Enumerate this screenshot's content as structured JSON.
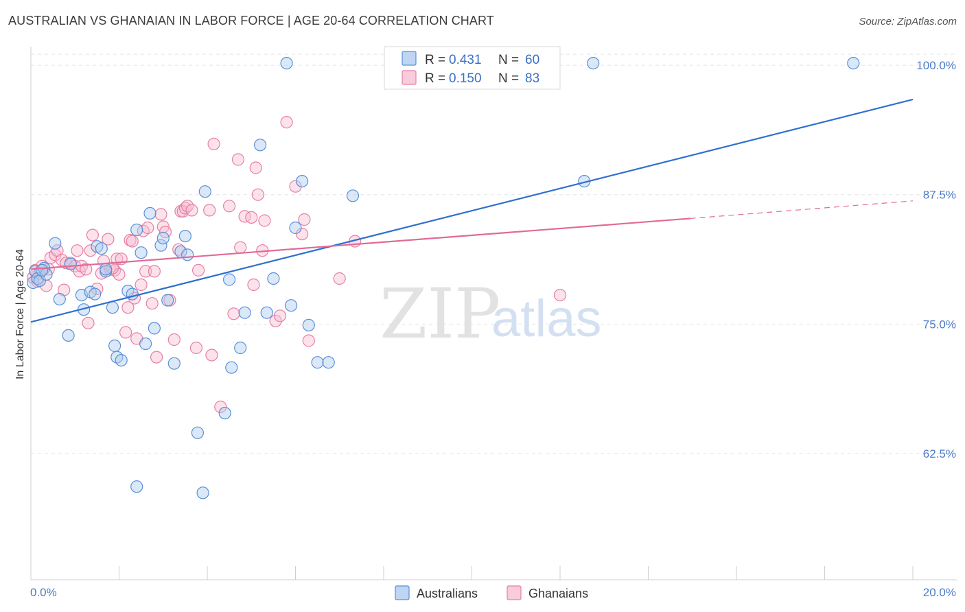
{
  "title": "AUSTRALIAN VS GHANAIAN IN LABOR FORCE | AGE 20-64 CORRELATION CHART",
  "source": "Source: ZipAtlas.com",
  "watermark": {
    "zip": "ZIP",
    "atlas": "atlas"
  },
  "legend": {
    "r_label": "R =",
    "n_label": "N =",
    "entries": [
      {
        "r": "0.431",
        "n": "60",
        "color": "#5b8fd6",
        "fill": "#aecbf0"
      },
      {
        "r": "0.150",
        "n": "83",
        "color": "#e77fa5",
        "fill": "#f7bfd2"
      }
    ]
  },
  "bottom_legend": [
    "Australians",
    "Ghanaians"
  ],
  "colors": {
    "blue": "#3f7fd6",
    "blue_line": "#2f6fcf",
    "pink": "#e8799f",
    "pink_line": "#e06a98",
    "tick": "#4a7ac8"
  },
  "chart_data": {
    "type": "scatter",
    "title": "AUSTRALIAN VS GHANAIAN IN LABOR FORCE | AGE 20-64 CORRELATION CHART",
    "xlabel": "",
    "ylabel": "In Labor Force | Age 20-64",
    "xlim": [
      0,
      20
    ],
    "ylim": [
      50.3,
      101.8
    ],
    "x_tick_labels": [
      "0.0%",
      "20.0%"
    ],
    "y_ticks": [
      62.5,
      75.0,
      87.5,
      100.0
    ],
    "y_tick_labels": [
      "62.5%",
      "75.0%",
      "87.5%",
      "100.0%"
    ],
    "grid": true,
    "legend_position": "top-center",
    "series": [
      {
        "name": "Australians",
        "color": "#3f7fd6",
        "r": 0.431,
        "n": 60,
        "trend": {
          "x": [
            0,
            20
          ],
          "y": [
            75.2,
            96.7
          ],
          "style": "solid"
        },
        "points": [
          [
            0.05,
            79.0
          ],
          [
            0.1,
            80.1
          ],
          [
            0.15,
            79.4
          ],
          [
            0.2,
            79.2
          ],
          [
            0.3,
            80.4
          ],
          [
            0.35,
            79.8
          ],
          [
            0.55,
            82.8
          ],
          [
            0.65,
            77.4
          ],
          [
            0.85,
            73.9
          ],
          [
            0.9,
            80.8
          ],
          [
            1.15,
            77.8
          ],
          [
            1.2,
            76.4
          ],
          [
            1.35,
            78.1
          ],
          [
            1.45,
            77.9
          ],
          [
            1.5,
            82.5
          ],
          [
            1.6,
            82.3
          ],
          [
            1.7,
            80.1
          ],
          [
            1.85,
            76.6
          ],
          [
            1.9,
            72.9
          ],
          [
            1.95,
            71.8
          ],
          [
            2.05,
            71.5
          ],
          [
            2.2,
            78.2
          ],
          [
            2.3,
            77.9
          ],
          [
            2.4,
            84.1
          ],
          [
            2.5,
            81.9
          ],
          [
            2.6,
            73.1
          ],
          [
            2.7,
            85.7
          ],
          [
            2.8,
            74.6
          ],
          [
            2.95,
            82.6
          ],
          [
            3.0,
            83.3
          ],
          [
            3.1,
            77.3
          ],
          [
            3.25,
            71.2
          ],
          [
            3.4,
            82.0
          ],
          [
            3.5,
            83.5
          ],
          [
            3.55,
            81.7
          ],
          [
            3.78,
            64.5
          ],
          [
            3.9,
            58.7
          ],
          [
            3.95,
            87.8
          ],
          [
            2.4,
            59.3
          ],
          [
            4.4,
            66.4
          ],
          [
            4.5,
            79.3
          ],
          [
            4.55,
            70.8
          ],
          [
            4.75,
            72.7
          ],
          [
            4.85,
            76.1
          ],
          [
            5.2,
            92.3
          ],
          [
            5.35,
            76.1
          ],
          [
            5.5,
            79.4
          ],
          [
            5.8,
            100.2
          ],
          [
            5.9,
            76.8
          ],
          [
            6.0,
            84.3
          ],
          [
            6.15,
            88.8
          ],
          [
            6.3,
            74.9
          ],
          [
            6.5,
            71.3
          ],
          [
            6.75,
            71.3
          ],
          [
            7.3,
            87.4
          ],
          [
            12.75,
            100.2
          ],
          [
            12.55,
            88.8
          ],
          [
            18.65,
            100.2
          ],
          [
            0.25,
            80.2
          ],
          [
            1.7,
            80.3
          ]
        ]
      },
      {
        "name": "Ghanaians",
        "color": "#e8799f",
        "r": 0.15,
        "n": 83,
        "trend": {
          "x": [
            0,
            14.95
          ],
          "y": [
            80.3,
            85.2
          ],
          "style": "solid"
        },
        "trend_extension": {
          "x": [
            14.95,
            20
          ],
          "y": [
            85.2,
            86.9
          ],
          "style": "dashed"
        },
        "points": [
          [
            0.05,
            79.5
          ],
          [
            0.1,
            80.2
          ],
          [
            0.15,
            79.1
          ],
          [
            0.25,
            80.6
          ],
          [
            0.35,
            78.7
          ],
          [
            0.4,
            80.3
          ],
          [
            0.45,
            81.4
          ],
          [
            0.55,
            81.7
          ],
          [
            0.6,
            82.1
          ],
          [
            0.7,
            81.2
          ],
          [
            0.75,
            78.3
          ],
          [
            0.8,
            80.9
          ],
          [
            0.9,
            80.9
          ],
          [
            1.0,
            80.6
          ],
          [
            1.05,
            82.1
          ],
          [
            1.1,
            80.1
          ],
          [
            1.15,
            80.6
          ],
          [
            1.25,
            80.3
          ],
          [
            1.3,
            75.1
          ],
          [
            1.35,
            82.1
          ],
          [
            1.4,
            83.6
          ],
          [
            1.5,
            78.4
          ],
          [
            1.6,
            79.9
          ],
          [
            1.65,
            81.1
          ],
          [
            1.75,
            83.2
          ],
          [
            1.8,
            80.3
          ],
          [
            1.9,
            80.2
          ],
          [
            1.95,
            81.3
          ],
          [
            2.0,
            79.8
          ],
          [
            2.05,
            81.3
          ],
          [
            2.15,
            74.2
          ],
          [
            2.2,
            76.6
          ],
          [
            2.25,
            83.1
          ],
          [
            2.35,
            77.5
          ],
          [
            2.4,
            73.6
          ],
          [
            2.5,
            78.8
          ],
          [
            2.55,
            84.0
          ],
          [
            2.6,
            80.1
          ],
          [
            2.65,
            84.3
          ],
          [
            2.75,
            77.0
          ],
          [
            2.8,
            80.1
          ],
          [
            2.85,
            71.8
          ],
          [
            2.95,
            85.6
          ],
          [
            3.0,
            84.4
          ],
          [
            3.05,
            83.9
          ],
          [
            3.15,
            77.3
          ],
          [
            3.25,
            73.5
          ],
          [
            3.35,
            82.2
          ],
          [
            3.4,
            85.9
          ],
          [
            3.45,
            85.9
          ],
          [
            3.5,
            86.2
          ],
          [
            3.55,
            86.4
          ],
          [
            3.65,
            86.0
          ],
          [
            3.75,
            72.7
          ],
          [
            3.8,
            80.2
          ],
          [
            4.05,
            86.0
          ],
          [
            4.1,
            72.0
          ],
          [
            4.15,
            92.4
          ],
          [
            4.3,
            67.0
          ],
          [
            4.5,
            86.4
          ],
          [
            4.6,
            76.0
          ],
          [
            4.7,
            90.9
          ],
          [
            4.75,
            82.4
          ],
          [
            4.85,
            85.4
          ],
          [
            5.0,
            85.3
          ],
          [
            5.05,
            78.8
          ],
          [
            5.1,
            90.1
          ],
          [
            5.15,
            87.5
          ],
          [
            5.25,
            82.1
          ],
          [
            5.3,
            85.0
          ],
          [
            5.55,
            75.3
          ],
          [
            5.65,
            75.8
          ],
          [
            5.8,
            94.5
          ],
          [
            6.0,
            88.3
          ],
          [
            6.15,
            83.7
          ],
          [
            6.2,
            85.1
          ],
          [
            6.3,
            73.4
          ],
          [
            7.0,
            79.4
          ],
          [
            7.35,
            83.0
          ],
          [
            12.0,
            77.8
          ],
          [
            0.2,
            79.9
          ],
          [
            1.85,
            80.4
          ],
          [
            2.3,
            83.0
          ]
        ]
      }
    ]
  }
}
